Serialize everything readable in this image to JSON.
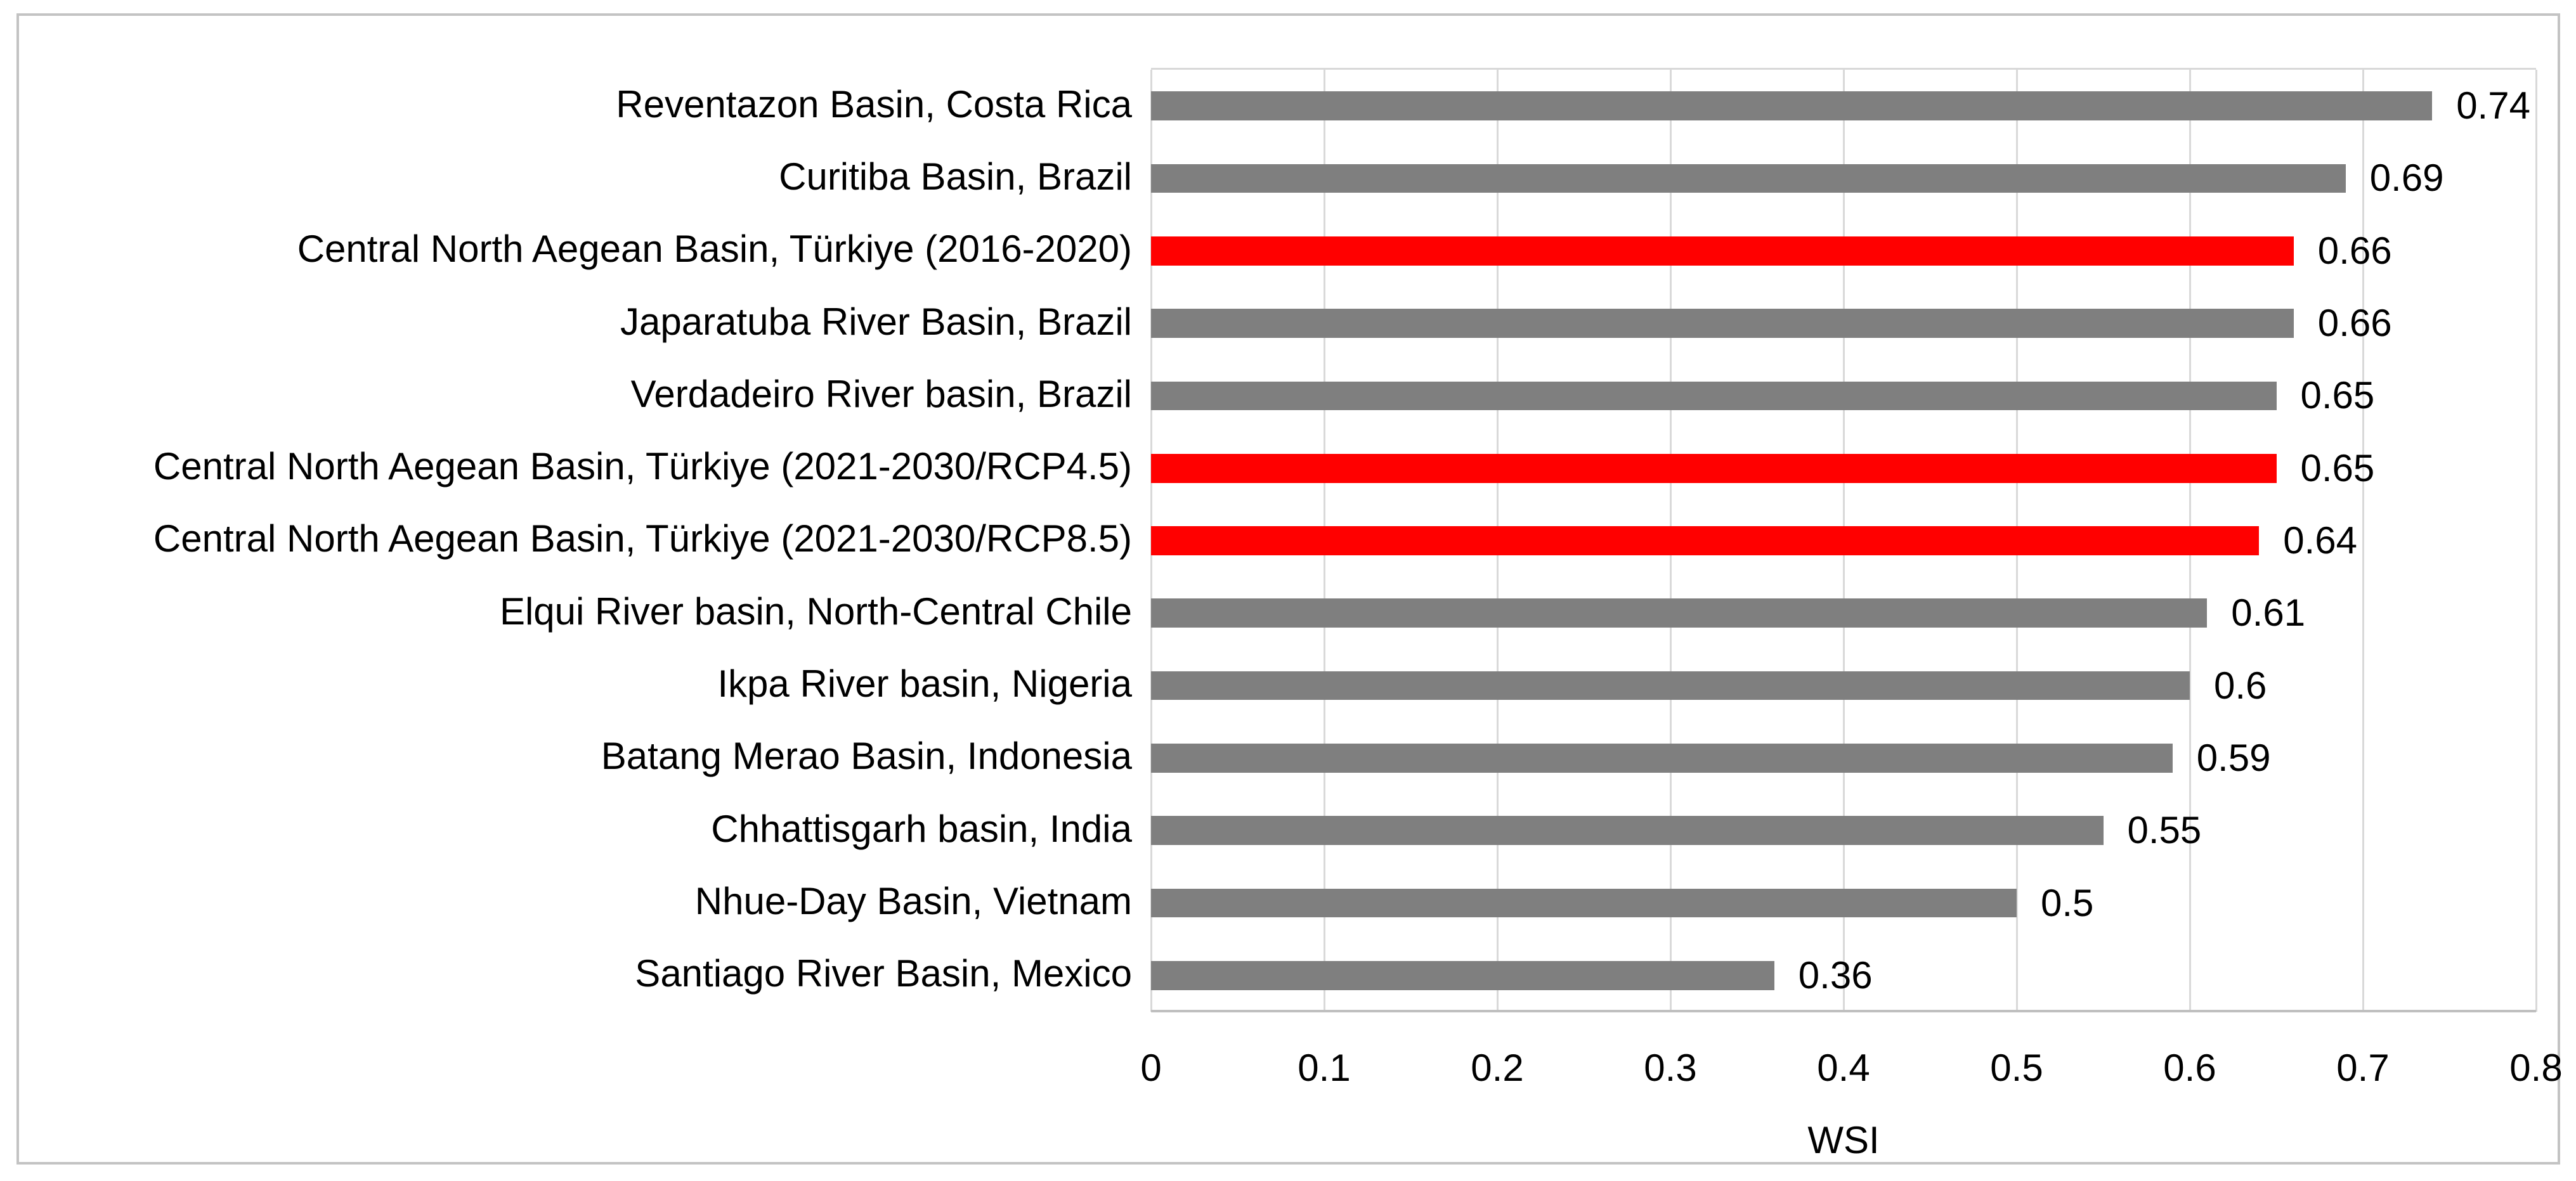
{
  "chart_data": {
    "type": "bar",
    "orientation": "horizontal",
    "title": "",
    "xlabel": "WSI",
    "ylabel": "",
    "xlim": [
      0,
      0.8
    ],
    "x_ticks": [
      "0",
      "0.1",
      "0.2",
      "0.3",
      "0.4",
      "0.5",
      "0.6",
      "0.7",
      "0.8"
    ],
    "grid": true,
    "legend": false,
    "categories": [
      "Reventazon Basin, Costa Rica",
      "Curitiba Basin, Brazil",
      "Central North Aegean Basin, Türkiye (2016-2020)",
      "Japaratuba River Basin, Brazil",
      "Verdadeiro River basin, Brazil",
      "Central North Aegean Basin, Türkiye (2021-2030/RCP4.5)",
      "Central North Aegean Basin, Türkiye (2021-2030/RCP8.5)",
      "Elqui River basin, North-Central Chile",
      "Ikpa River basin, Nigeria",
      "Batang Merao Basin, Indonesia",
      "Chhattisgarh basin, India",
      "Nhue-Day Basin, Vietnam",
      "Santiago River Basin, Mexico"
    ],
    "values": [
      0.74,
      0.69,
      0.66,
      0.66,
      0.65,
      0.65,
      0.64,
      0.61,
      0.6,
      0.59,
      0.55,
      0.5,
      0.36
    ],
    "value_labels": [
      "0.74",
      "0.69",
      "0.66",
      "0.66",
      "0.65",
      "0.65",
      "0.64",
      "0.61",
      "0.6",
      "0.59",
      "0.55",
      "0.5",
      "0.36"
    ],
    "highlight_indexes": [
      2,
      5,
      6
    ]
  },
  "colors": {
    "bar_default": "#7f7f7f",
    "bar_highlight": "#ff0000",
    "gridline": "#d9d9d9",
    "axis_line": "#bfbfbf",
    "frame_border": "#c3c3c3",
    "text": "#000000"
  }
}
